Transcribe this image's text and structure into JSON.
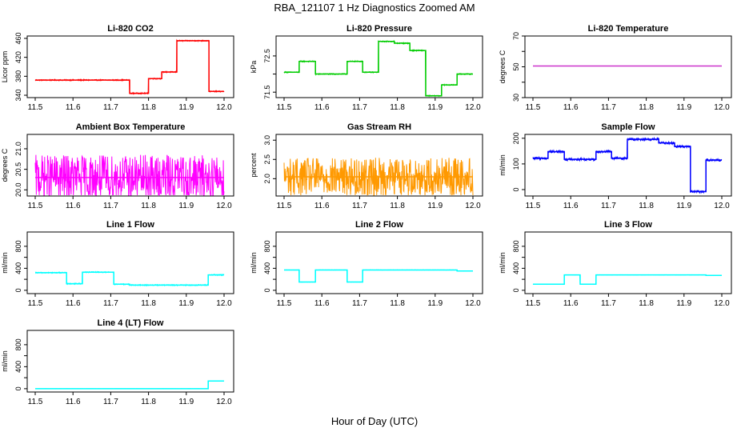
{
  "figure": {
    "title": "RBA_121107  1 Hz Diagnostics Zoomed AM",
    "xlabel": "Hour of Day (UTC)"
  },
  "chart_data": [
    {
      "type": "line",
      "title": "Li-820 CO2",
      "ylabel": "Licor ppm",
      "color": "#ff0000",
      "xlim": [
        11.5,
        12.0
      ],
      "ylim": [
        335,
        465
      ],
      "x_ticks": [
        "11.5",
        "11.6",
        "11.7",
        "11.8",
        "11.9",
        "12.0"
      ],
      "y_ticks": [
        {
          "value": 340,
          "label": "340"
        },
        {
          "value": 380,
          "label": "380"
        },
        {
          "value": 420,
          "label": "420"
        },
        {
          "value": 460,
          "label": "460"
        }
      ],
      "x": [
        11.5,
        11.75,
        11.75,
        11.8,
        11.8,
        11.835,
        11.835,
        11.875,
        11.875,
        11.96,
        11.96,
        12.0
      ],
      "values": [
        372,
        372,
        344,
        344,
        375,
        375,
        389,
        389,
        455,
        455,
        348,
        348
      ],
      "noise": 1.2
    },
    {
      "type": "line",
      "title": "Li-820 Pressure",
      "ylabel": "kPa",
      "color": "#00cc00",
      "xlim": [
        11.5,
        12.0
      ],
      "ylim": [
        71.35,
        73.05
      ],
      "x_ticks": [
        "11.5",
        "11.6",
        "11.7",
        "11.8",
        "11.9",
        "12.0"
      ],
      "y_ticks": [
        {
          "value": 71.5,
          "label": "71.5"
        },
        {
          "value": 72.0,
          "label": ""
        },
        {
          "value": 72.5,
          "label": "72.5"
        }
      ],
      "x": [
        11.5,
        11.54,
        11.54,
        11.583,
        11.583,
        11.667,
        11.667,
        11.708,
        11.708,
        11.75,
        11.75,
        11.792,
        11.792,
        11.833,
        11.833,
        11.875,
        11.875,
        11.917,
        11.917,
        11.958,
        11.958,
        12.0
      ],
      "values": [
        72.05,
        72.05,
        72.35,
        72.35,
        72.0,
        72.0,
        72.35,
        72.35,
        72.05,
        72.05,
        72.9,
        72.9,
        72.85,
        72.85,
        72.65,
        72.65,
        71.4,
        71.4,
        71.7,
        71.7,
        72.0,
        72.0
      ],
      "noise": 0.015
    },
    {
      "type": "line",
      "title": "Li-820 Temperature",
      "ylabel": "degrees C",
      "color": "#cc33cc",
      "xlim": [
        11.5,
        12.0
      ],
      "ylim": [
        30,
        70
      ],
      "x_ticks": [
        "11.5",
        "11.6",
        "11.7",
        "11.8",
        "11.9",
        "12.0"
      ],
      "y_ticks": [
        {
          "value": 30,
          "label": "30"
        },
        {
          "value": 40,
          "label": ""
        },
        {
          "value": 50,
          "label": "50"
        },
        {
          "value": 60,
          "label": ""
        },
        {
          "value": 70,
          "label": "70"
        }
      ],
      "x": [
        11.5,
        12.0
      ],
      "values": [
        50.5,
        50.5
      ],
      "noise": 0
    },
    {
      "type": "line",
      "title": "Ambient Box Temperature",
      "ylabel": "degrees C",
      "color": "#ff00ff",
      "xlim": [
        11.5,
        12.0
      ],
      "ylim": [
        19.85,
        21.35
      ],
      "x_ticks": [
        "11.5",
        "11.6",
        "11.7",
        "11.8",
        "11.9",
        "12.0"
      ],
      "y_ticks": [
        {
          "value": 20.0,
          "label": "20.0"
        },
        {
          "value": 20.5,
          "label": "20.5"
        },
        {
          "value": 21.0,
          "label": "21.0"
        }
      ],
      "x": [
        11.5,
        12.0
      ],
      "values": [
        20.3,
        20.3
      ],
      "noise": 0.55
    },
    {
      "type": "line",
      "title": "Gas Stream RH",
      "ylabel": "percent",
      "color": "#ff9900",
      "xlim": [
        11.5,
        12.0
      ],
      "ylim": [
        1.55,
        3.15
      ],
      "x_ticks": [
        "11.5",
        "11.6",
        "11.7",
        "11.8",
        "11.9",
        "12.0"
      ],
      "y_ticks": [
        {
          "value": 2.0,
          "label": "2.0"
        },
        {
          "value": 2.5,
          "label": "2.5"
        },
        {
          "value": 3.0,
          "label": "3.0"
        }
      ],
      "x": [
        11.5,
        12.0
      ],
      "values": [
        2.05,
        2.05
      ],
      "noise": 0.5
    },
    {
      "type": "line",
      "title": "Sample Flow",
      "ylabel": "ml/min",
      "color": "#0000ff",
      "xlim": [
        11.5,
        12.0
      ],
      "ylim": [
        -25,
        215
      ],
      "x_ticks": [
        "11.5",
        "11.6",
        "11.7",
        "11.8",
        "11.9",
        "12.0"
      ],
      "y_ticks": [
        {
          "value": 0,
          "label": "0"
        },
        {
          "value": 100,
          "label": "100"
        },
        {
          "value": 200,
          "label": "200"
        }
      ],
      "x": [
        11.5,
        11.54,
        11.54,
        11.583,
        11.583,
        11.667,
        11.667,
        11.708,
        11.708,
        11.75,
        11.75,
        11.833,
        11.833,
        11.875,
        11.875,
        11.917,
        11.917,
        11.958,
        11.958,
        12.0
      ],
      "values": [
        122,
        122,
        148,
        148,
        118,
        118,
        148,
        148,
        122,
        122,
        196,
        196,
        182,
        182,
        168,
        168,
        -8,
        -8,
        115,
        115
      ],
      "noise": 5
    },
    {
      "type": "line",
      "title": "Line 1 Flow",
      "ylabel": "ml/min",
      "color": "#00ffff",
      "xlim": [
        11.5,
        12.0
      ],
      "ylim": [
        -60,
        1060
      ],
      "x_ticks": [
        "11.5",
        "11.6",
        "11.7",
        "11.8",
        "11.9",
        "12.0"
      ],
      "y_ticks": [
        {
          "value": 0,
          "label": "0"
        },
        {
          "value": 200,
          "label": ""
        },
        {
          "value": 400,
          "label": "400"
        },
        {
          "value": 600,
          "label": ""
        },
        {
          "value": 800,
          "label": "800"
        }
      ],
      "x": [
        11.5,
        11.583,
        11.583,
        11.625,
        11.625,
        11.708,
        11.708,
        11.75,
        11.75,
        11.958,
        11.958,
        12.0
      ],
      "values": [
        320,
        320,
        120,
        120,
        330,
        330,
        110,
        110,
        95,
        95,
        280,
        280
      ],
      "noise": 10
    },
    {
      "type": "line",
      "title": "Line 2 Flow",
      "ylabel": "ml/min",
      "color": "#00ffff",
      "xlim": [
        11.5,
        12.0
      ],
      "ylim": [
        -60,
        1060
      ],
      "x_ticks": [
        "11.5",
        "11.6",
        "11.7",
        "11.8",
        "11.9",
        "12.0"
      ],
      "y_ticks": [
        {
          "value": 0,
          "label": "0"
        },
        {
          "value": 200,
          "label": ""
        },
        {
          "value": 400,
          "label": "400"
        },
        {
          "value": 600,
          "label": ""
        },
        {
          "value": 800,
          "label": "800"
        }
      ],
      "x": [
        11.5,
        11.54,
        11.54,
        11.583,
        11.583,
        11.667,
        11.667,
        11.708,
        11.708,
        11.958,
        11.958,
        12.0
      ],
      "values": [
        370,
        370,
        150,
        150,
        370,
        370,
        150,
        150,
        370,
        370,
        350,
        350
      ],
      "noise": 3
    },
    {
      "type": "line",
      "title": "Line 3 Flow",
      "ylabel": "ml/min",
      "color": "#00ffff",
      "xlim": [
        11.5,
        12.0
      ],
      "ylim": [
        -60,
        1060
      ],
      "x_ticks": [
        "11.5",
        "11.6",
        "11.7",
        "11.8",
        "11.9",
        "12.0"
      ],
      "y_ticks": [
        {
          "value": 0,
          "label": "0"
        },
        {
          "value": 200,
          "label": ""
        },
        {
          "value": 400,
          "label": "400"
        },
        {
          "value": 600,
          "label": ""
        },
        {
          "value": 800,
          "label": "800"
        }
      ],
      "x": [
        11.5,
        11.54,
        11.54,
        11.583,
        11.583,
        11.625,
        11.625,
        11.667,
        11.667,
        11.958,
        11.958,
        12.0
      ],
      "values": [
        110,
        110,
        110,
        110,
        280,
        280,
        110,
        110,
        280,
        280,
        270,
        270
      ],
      "noise": 3
    },
    {
      "type": "line",
      "title": "Line 4 (LT) Flow",
      "ylabel": "ml/min",
      "color": "#00ffff",
      "xlim": [
        11.5,
        12.0
      ],
      "ylim": [
        -60,
        1060
      ],
      "x_ticks": [
        "11.5",
        "11.6",
        "11.7",
        "11.8",
        "11.9",
        "12.0"
      ],
      "y_ticks": [
        {
          "value": 0,
          "label": "0"
        },
        {
          "value": 200,
          "label": ""
        },
        {
          "value": 400,
          "label": "400"
        },
        {
          "value": 600,
          "label": ""
        },
        {
          "value": 800,
          "label": "800"
        }
      ],
      "x": [
        11.5,
        11.958,
        11.958,
        12.0
      ],
      "values": [
        0,
        0,
        140,
        140
      ],
      "noise": 2
    }
  ]
}
